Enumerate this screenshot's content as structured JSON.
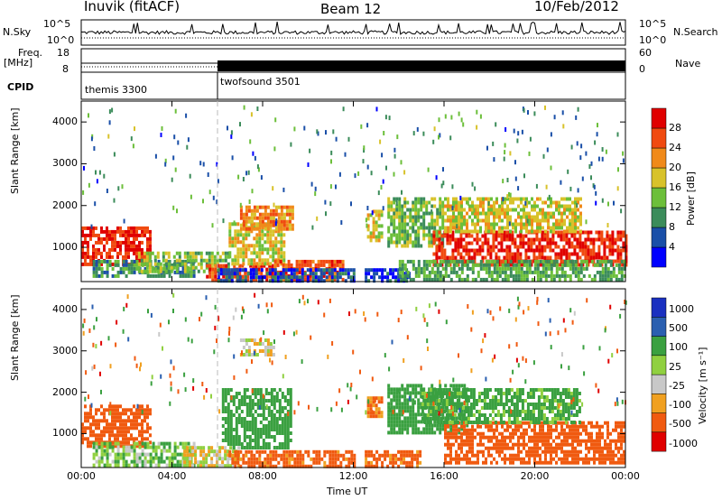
{
  "header": {
    "station": "Inuvik (fitACF)",
    "beam": "Beam 12",
    "date": "10/Feb/2012"
  },
  "strip_labels": {
    "nsky": "N.Sky",
    "nsearch": "N.Search",
    "freq": "Freq.",
    "freq_unit": "[MHz]",
    "nave": "Nave",
    "cpid": "CPID",
    "nsky_ticks": [
      "10^5",
      "10^0"
    ],
    "nsearch_ticks": [
      "10^5",
      "10^0"
    ],
    "freq_ticks": [
      "18",
      "8"
    ],
    "nave_ticks": [
      "60",
      "0"
    ]
  },
  "cpid_segments": [
    {
      "label": "themis 3300",
      "start_hour": 0
    },
    {
      "label": "twofsound 3501",
      "start_hour": 6
    }
  ],
  "colors": {
    "power": [
      "#0000ff",
      "#1a4fa8",
      "#3b8c5a",
      "#6cbf3a",
      "#d8c22a",
      "#f08a1a",
      "#f04a10",
      "#e00000"
    ],
    "velocity": [
      "#e00000",
      "#f05a10",
      "#f0a020",
      "#c8c8c8",
      "#90d040",
      "#3aa040",
      "#2a5fb0",
      "#1a30c0"
    ]
  },
  "chart_data": [
    {
      "type": "heatmap",
      "panel": "power",
      "ylabel": "Slant Range [km]",
      "xlabel": "Time UT",
      "x_ticks": [
        "00:00",
        "04:00",
        "08:00",
        "12:00",
        "16:00",
        "20:00",
        "00:00"
      ],
      "y_ticks": [
        "1000",
        "2000",
        "3000",
        "4000"
      ],
      "xlim": [
        0,
        24
      ],
      "ylim": [
        180,
        4500
      ],
      "colorbar_label": "Power [dB]",
      "colorbar_ticks": [
        "4",
        "8",
        "12",
        "16",
        "20",
        "24",
        "28"
      ],
      "regions": [
        {
          "t0": 0.0,
          "t1": 3.0,
          "r0": 600,
          "r1": 1500,
          "v": 28
        },
        {
          "t0": 0.5,
          "t1": 5.0,
          "r0": 300,
          "r1": 700,
          "v": 10
        },
        {
          "t0": 2.5,
          "t1": 6.5,
          "r0": 400,
          "r1": 900,
          "v": 14
        },
        {
          "t0": 5.5,
          "t1": 8.5,
          "r0": 200,
          "r1": 600,
          "v": 27
        },
        {
          "t0": 6.5,
          "t1": 9.0,
          "r0": 600,
          "r1": 1600,
          "v": 18
        },
        {
          "t0": 7.0,
          "t1": 9.3,
          "r0": 1400,
          "r1": 2000,
          "v": 22
        },
        {
          "t0": 8.5,
          "t1": 11.5,
          "r0": 200,
          "r1": 700,
          "v": 26
        },
        {
          "t0": 6.0,
          "t1": 12.0,
          "r0": 200,
          "r1": 500,
          "v": 6
        },
        {
          "t0": 12.5,
          "t1": 14.5,
          "r0": 200,
          "r1": 500,
          "v": 5
        },
        {
          "t0": 12.6,
          "t1": 13.2,
          "r0": 1200,
          "r1": 1900,
          "v": 18
        },
        {
          "t0": 13.5,
          "t1": 16.0,
          "r0": 1000,
          "r1": 2200,
          "v": 14
        },
        {
          "t0": 15.5,
          "t1": 24.0,
          "r0": 600,
          "r1": 1400,
          "v": 28
        },
        {
          "t0": 14.0,
          "t1": 24.0,
          "r0": 200,
          "r1": 700,
          "v": 12
        },
        {
          "t0": 16.0,
          "t1": 22.0,
          "r0": 1400,
          "r1": 2200,
          "v": 18
        }
      ]
    },
    {
      "type": "heatmap",
      "panel": "velocity",
      "ylabel": "Slant Range [km]",
      "xlabel": "Time UT",
      "x_ticks": [
        "00:00",
        "04:00",
        "08:00",
        "12:00",
        "16:00",
        "20:00",
        "00:00"
      ],
      "y_ticks": [
        "1000",
        "2000",
        "3000",
        "4000"
      ],
      "xlim": [
        0,
        24
      ],
      "ylim": [
        180,
        4500
      ],
      "colorbar_label": "Velocity [m s⁻¹]",
      "colorbar_ticks": [
        "1000",
        "500",
        "100",
        "25",
        "-25",
        "-100",
        "-500",
        "-1000"
      ],
      "regions": [
        {
          "t0": 0.0,
          "t1": 3.0,
          "r0": 700,
          "r1": 1700,
          "v": -300
        },
        {
          "t0": 0.5,
          "t1": 5.0,
          "r0": 200,
          "r1": 800,
          "v": 80
        },
        {
          "t0": 4.5,
          "t1": 7.0,
          "r0": 200,
          "r1": 700,
          "v": 0
        },
        {
          "t0": 6.2,
          "t1": 9.3,
          "r0": 700,
          "r1": 2100,
          "v": 300
        },
        {
          "t0": 6.5,
          "t1": 12.0,
          "r0": 200,
          "r1": 600,
          "v": -150
        },
        {
          "t0": 7.0,
          "t1": 8.5,
          "r0": 2900,
          "r1": 3300,
          "v": 0
        },
        {
          "t0": 12.6,
          "t1": 13.2,
          "r0": 1400,
          "r1": 1900,
          "v": -120
        },
        {
          "t0": 13.5,
          "t1": 17.0,
          "r0": 1000,
          "r1": 2200,
          "v": 400
        },
        {
          "t0": 16.0,
          "t1": 24.0,
          "r0": 300,
          "r1": 1300,
          "v": -200
        },
        {
          "t0": 12.5,
          "t1": 15.0,
          "r0": 200,
          "r1": 600,
          "v": -150
        },
        {
          "t0": 15.0,
          "t1": 22.0,
          "r0": 1300,
          "r1": 2100,
          "v": 150
        }
      ]
    }
  ]
}
